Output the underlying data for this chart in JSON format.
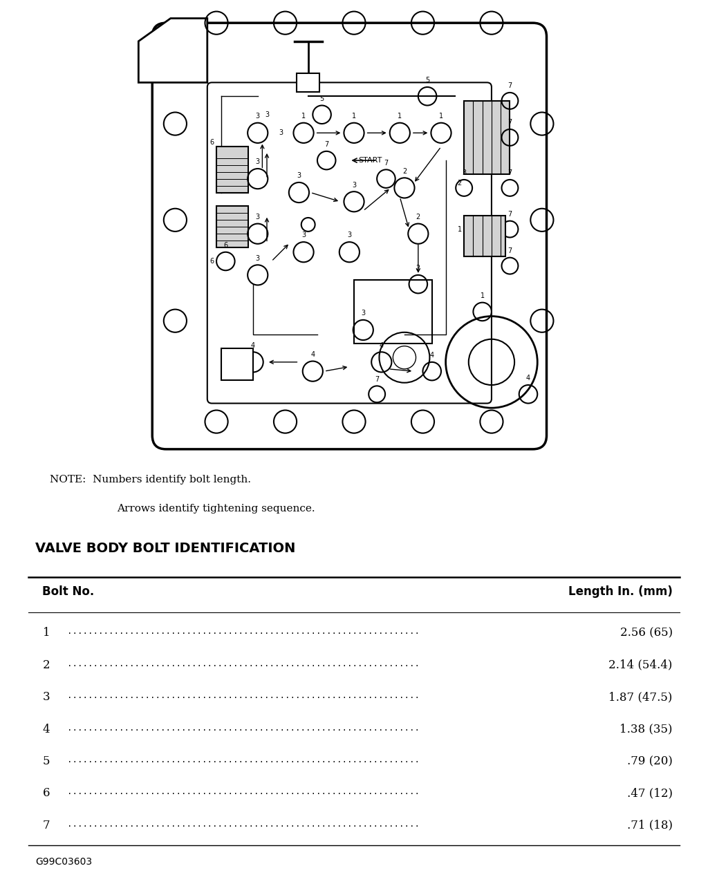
{
  "bg_color": "#ffffff",
  "title_section": "VALVE BODY BOLT IDENTIFICATION",
  "note_line1": "NOTE:  Numbers identify bolt length.",
  "note_line2": "Arrows identify tightening sequence.",
  "table_header_left": "Bolt No.",
  "table_header_right": "Length In. (mm)",
  "rows": [
    {
      "bolt": "1",
      "length": "2.56 (65)"
    },
    {
      "bolt": "2",
      "length": "2.14 (54.4)"
    },
    {
      "bolt": "3",
      "length": "1.87 (47.5)"
    },
    {
      "bolt": "4",
      "length": "1.38 (35)"
    },
    {
      "bolt": "5",
      "length": ".79 (20)"
    },
    {
      "bolt": "6",
      "length": ".47 (12)"
    },
    {
      "bolt": "7",
      "length": ".71 (18)"
    }
  ],
  "footer": "G99C03603"
}
